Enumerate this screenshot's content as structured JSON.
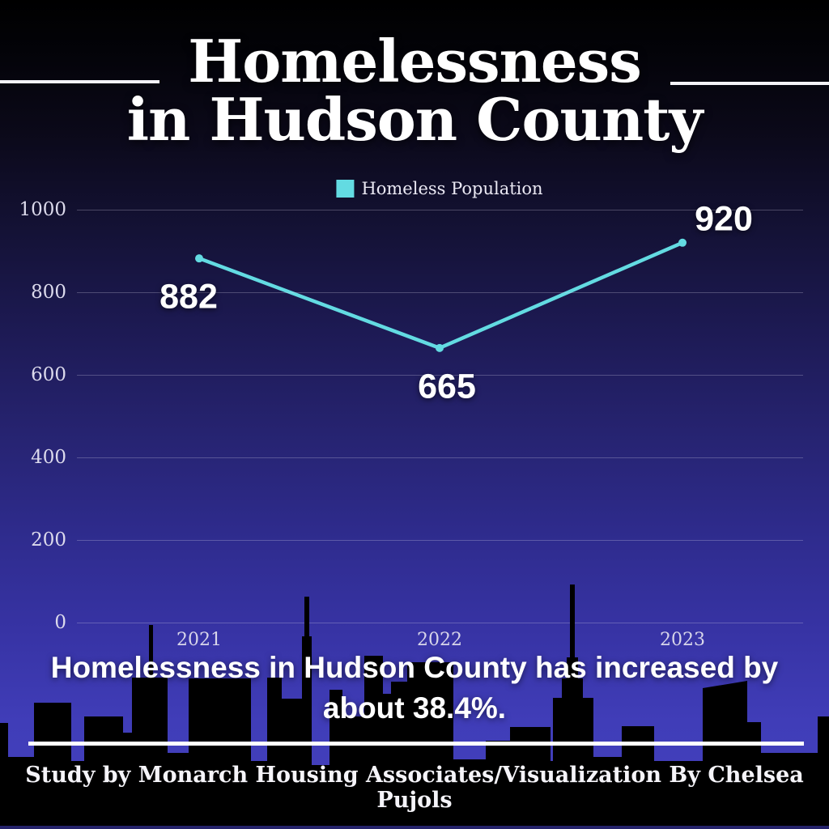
{
  "title": {
    "line1": "Homelessness",
    "line2": "in Hudson County"
  },
  "legend": {
    "label": "Homeless Population"
  },
  "chart_data": {
    "type": "line",
    "title": "Homelessness in Hudson County",
    "categories": [
      "2021",
      "2022",
      "2023"
    ],
    "series": [
      {
        "name": "Homeless Population",
        "values": [
          882,
          665,
          920
        ]
      }
    ],
    "point_labels": [
      "882",
      "665",
      "920"
    ],
    "xlabel": "",
    "ylabel": "",
    "ylim": [
      0,
      1000
    ],
    "yticks": [
      1000,
      800,
      600,
      400,
      200,
      0
    ],
    "grid": true,
    "legend_position": "top-center",
    "line_color": "#63dbe2",
    "marker": "circle"
  },
  "subtitle": {
    "line1": "Homelessness in Hudson County has increased by",
    "line2": "about 38.4%."
  },
  "footer": {
    "credit": "Study by Monarch Housing Associates/Visualization By Chelsea Pujols"
  },
  "colors": {
    "accent": "#63dbe2",
    "background_top": "#000000",
    "background_bottom": "#4441bf",
    "skyline": "#000000",
    "text": "#ffffff"
  }
}
